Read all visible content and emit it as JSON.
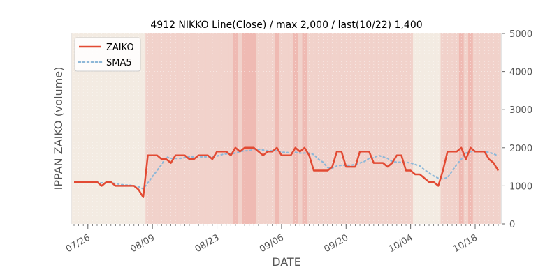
{
  "chart_data": {
    "type": "line",
    "title": "4912 NIKKO Line(Close) / max 2,000 / last(10/22) 1,400",
    "xlabel": "DATE",
    "ylabel": "IPPAN ZAIKO (volume)",
    "ylim": [
      0,
      5000
    ],
    "y_axis_side": "right",
    "yticks": [
      "0",
      "1000",
      "2000",
      "3000",
      "4000",
      "5000"
    ],
    "start_date": "2021-07-23",
    "xtick_labels": [
      {
        "date": "2021-07-26",
        "label": "07/26"
      },
      {
        "date": "2021-08-09",
        "label": "08/09"
      },
      {
        "date": "2021-08-23",
        "label": "08/23"
      },
      {
        "date": "2021-09-06",
        "label": "09/06"
      },
      {
        "date": "2021-09-20",
        "label": "09/20"
      },
      {
        "date": "2021-10-04",
        "label": "10/04"
      },
      {
        "date": "2021-10-18",
        "label": "10/18"
      }
    ],
    "series": [
      {
        "name": "ZAIKO",
        "color": "#e24a33",
        "style": "solid",
        "values": [
          1100,
          1100,
          1100,
          1100,
          1100,
          1100,
          1000,
          1100,
          1100,
          1000,
          1000,
          1000,
          1000,
          1000,
          900,
          700,
          1800,
          1800,
          1800,
          1700,
          1700,
          1600,
          1800,
          1800,
          1800,
          1700,
          1700,
          1800,
          1800,
          1800,
          1700,
          1900,
          1900,
          1900,
          1800,
          2000,
          1900,
          2000,
          2000,
          2000,
          1900,
          1800,
          1900,
          1900,
          2000,
          1800,
          1800,
          1800,
          2000,
          1900,
          2000,
          1800,
          1400,
          1400,
          1400,
          1400,
          1500,
          1900,
          1900,
          1500,
          1500,
          1500,
          1900,
          1900,
          1900,
          1600,
          1600,
          1600,
          1500,
          1600,
          1800,
          1800,
          1400,
          1400,
          1300,
          1300,
          1200,
          1100,
          1100,
          1000,
          1400,
          1900,
          1900,
          1900,
          2000,
          1700,
          2000,
          1900,
          1900,
          1900,
          1700,
          1600,
          1400
        ]
      },
      {
        "name": "SMA5",
        "color": "#8eb8d8",
        "style": "dotted",
        "values": [
          null,
          null,
          null,
          null,
          1100,
          1100,
          1080,
          1080,
          1080,
          1060,
          1040,
          1020,
          1020,
          1000,
          980,
          920,
          1080,
          1240,
          1400,
          1560,
          1760,
          1720,
          1720,
          1720,
          1740,
          1760,
          1760,
          1760,
          1760,
          1760,
          1760,
          1780,
          1820,
          1840,
          1840,
          1860,
          1900,
          1920,
          1920,
          1960,
          1960,
          1940,
          1920,
          1920,
          1920,
          1880,
          1880,
          1860,
          1880,
          1860,
          1860,
          1860,
          1820,
          1700,
          1620,
          1480,
          1460,
          1520,
          1540,
          1540,
          1540,
          1560,
          1600,
          1640,
          1720,
          1740,
          1800,
          1760,
          1720,
          1640,
          1620,
          1620,
          1620,
          1600,
          1560,
          1520,
          1420,
          1340,
          1260,
          1200,
          1180,
          1220,
          1380,
          1560,
          1700,
          1860,
          1900,
          1900,
          1900,
          1900,
          1880,
          1840,
          1780
        ]
      }
    ],
    "legend": {
      "position": "top-left",
      "entries": [
        "ZAIKO",
        "SMA5"
      ]
    },
    "colors": {
      "plot_background": "#e5e5e5",
      "band_light": "#f4ebe1",
      "band_medium": "#f2cfc8",
      "band_strong": "#f0b5ad"
    },
    "grid": true
  }
}
